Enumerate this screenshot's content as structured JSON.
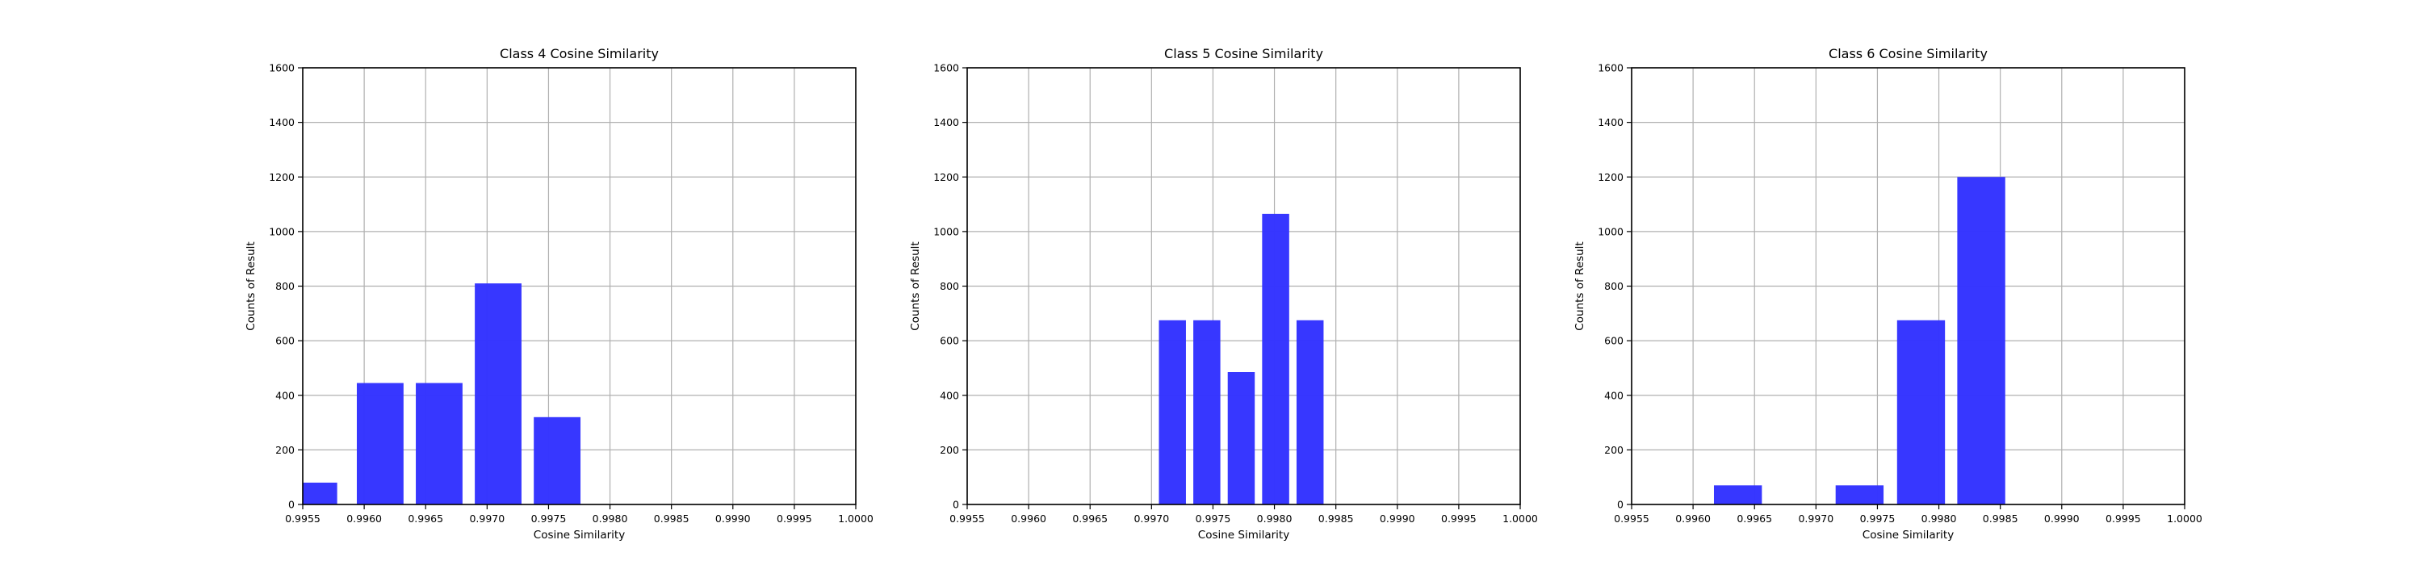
{
  "chart_data": [
    {
      "type": "bar",
      "title": "Class 4 Cosine Similarity",
      "xlabel": "Cosine Similarity",
      "ylabel": "Counts of Result",
      "xlim": [
        0.9955,
        1.0
      ],
      "ylim": [
        0,
        1600
      ],
      "xticks": [
        "0.9955",
        "0.9960",
        "0.9965",
        "0.9970",
        "0.9975",
        "0.9980",
        "0.9985",
        "0.9990",
        "0.9995",
        "1.0000"
      ],
      "yticks": [
        "0",
        "200",
        "400",
        "600",
        "800",
        "1000",
        "1200",
        "1400",
        "1600"
      ],
      "grid": true,
      "color": "#3333ff",
      "bars": [
        {
          "x_start": 0.9955,
          "x_end": 0.99578,
          "value": 80
        },
        {
          "x_start": 0.99594,
          "x_end": 0.99632,
          "value": 445
        },
        {
          "x_start": 0.99642,
          "x_end": 0.9968,
          "value": 445
        },
        {
          "x_start": 0.9969,
          "x_end": 0.99728,
          "value": 810
        },
        {
          "x_start": 0.99738,
          "x_end": 0.99776,
          "value": 320
        }
      ]
    },
    {
      "type": "bar",
      "title": "Class 5 Cosine Similarity",
      "xlabel": "Cosine Similarity",
      "ylabel": "Counts of Result",
      "xlim": [
        0.9955,
        1.0
      ],
      "ylim": [
        0,
        1600
      ],
      "xticks": [
        "0.9955",
        "0.9960",
        "0.9965",
        "0.9970",
        "0.9975",
        "0.9980",
        "0.9985",
        "0.9990",
        "0.9995",
        "1.0000"
      ],
      "yticks": [
        "0",
        "200",
        "400",
        "600",
        "800",
        "1000",
        "1200",
        "1400",
        "1600"
      ],
      "grid": true,
      "color": "#3333ff",
      "bars": [
        {
          "x_start": 0.99706,
          "x_end": 0.99728,
          "value": 675
        },
        {
          "x_start": 0.99734,
          "x_end": 0.99756,
          "value": 675
        },
        {
          "x_start": 0.99762,
          "x_end": 0.99784,
          "value": 485
        },
        {
          "x_start": 0.9979,
          "x_end": 0.99812,
          "value": 1065
        },
        {
          "x_start": 0.99818,
          "x_end": 0.9984,
          "value": 675
        }
      ]
    },
    {
      "type": "bar",
      "title": "Class 6 Cosine Similarity",
      "xlabel": "Cosine Similarity",
      "ylabel": "Counts of Result",
      "xlim": [
        0.9955,
        1.0
      ],
      "ylim": [
        0,
        1600
      ],
      "xticks": [
        "0.9955",
        "0.9960",
        "0.9965",
        "0.9970",
        "0.9975",
        "0.9980",
        "0.9985",
        "0.9990",
        "0.9995",
        "1.0000"
      ],
      "yticks": [
        "0",
        "200",
        "400",
        "600",
        "800",
        "1000",
        "1200",
        "1400",
        "1600"
      ],
      "grid": true,
      "color": "#3333ff",
      "bars": [
        {
          "x_start": 0.99617,
          "x_end": 0.99656,
          "value": 70
        },
        {
          "x_start": 0.99716,
          "x_end": 0.99755,
          "value": 70
        },
        {
          "x_start": 0.99766,
          "x_end": 0.99805,
          "value": 675
        },
        {
          "x_start": 0.99815,
          "x_end": 0.99854,
          "value": 1200
        }
      ]
    }
  ]
}
